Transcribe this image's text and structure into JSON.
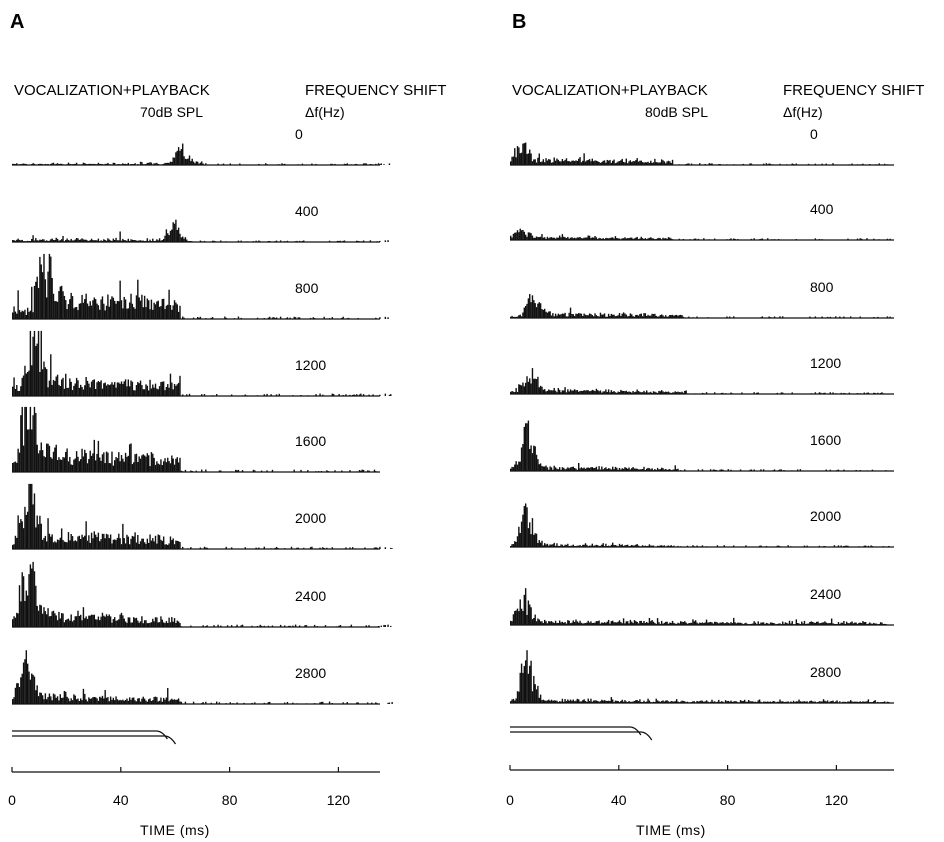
{
  "panels": [
    {
      "letter": "A",
      "header_left": "VOCALIZATION+PLAYBACK",
      "header_level": "70dB SPL",
      "header_right": "FREQUENCY SHIFT",
      "header_right_sub": "Δf(Hz)",
      "xlabel": "TIME (ms)"
    },
    {
      "letter": "B",
      "header_left": "VOCALIZATION+PLAYBACK",
      "header_level": "80dB SPL",
      "header_right": "FREQUENCY SHIFT",
      "header_right_sub": "Δf(Hz)",
      "xlabel": "TIME (ms)"
    }
  ],
  "chart_data": [
    {
      "type": "bar",
      "panel": "A",
      "title": "VOCALIZATION+PLAYBACK 70dB SPL",
      "xlabel": "TIME (ms)",
      "xlim": [
        0,
        140
      ],
      "xticks": [
        "0",
        "40",
        "80",
        "120"
      ],
      "grid": false,
      "series_label_heading": "FREQUENCY SHIFT Δf(Hz)",
      "series": [
        {
          "name": "0",
          "shape": {
            "peak_t": 62,
            "peak_h": 0.25,
            "plateau_h": 0.03,
            "plateau_end": 70,
            "noise": 0.03
          }
        },
        {
          "name": "400",
          "shape": {
            "peak_t": 60,
            "peak_h": 0.18,
            "plateau_h": 0.07,
            "plateau_end": 62,
            "noise": 0.03
          }
        },
        {
          "name": "800",
          "shape": {
            "peak_t": 12,
            "peak_h": 0.55,
            "plateau_h": 0.35,
            "plateau_end": 62,
            "noise": 0.04
          }
        },
        {
          "name": "1200",
          "shape": {
            "peak_t": 8,
            "peak_h": 1.0,
            "plateau_h": 0.25,
            "plateau_end": 62,
            "noise": 0.04
          }
        },
        {
          "name": "1600",
          "shape": {
            "peak_t": 6,
            "peak_h": 0.9,
            "plateau_h": 0.3,
            "plateau_end": 62,
            "noise": 0.04
          }
        },
        {
          "name": "2000",
          "shape": {
            "peak_t": 6,
            "peak_h": 0.85,
            "plateau_h": 0.22,
            "plateau_end": 62,
            "noise": 0.04
          }
        },
        {
          "name": "2400",
          "shape": {
            "peak_t": 6,
            "peak_h": 1.0,
            "plateau_h": 0.18,
            "plateau_end": 62,
            "noise": 0.04
          }
        },
        {
          "name": "2800",
          "shape": {
            "peak_t": 5,
            "peak_h": 0.6,
            "plateau_h": 0.12,
            "plateau_end": 62,
            "noise": 0.04
          }
        }
      ],
      "stimulus_end_ms": [
        56,
        59
      ]
    },
    {
      "type": "bar",
      "panel": "B",
      "title": "VOCALIZATION+PLAYBACK 80dB SPL",
      "xlabel": "TIME (ms)",
      "xlim": [
        0,
        140
      ],
      "xticks": [
        "0",
        "40",
        "80",
        "120"
      ],
      "grid": false,
      "series_label_heading": "FREQUENCY SHIFT Δf(Hz)",
      "series": [
        {
          "name": "0",
          "shape": {
            "peak_t": 4,
            "peak_h": 0.22,
            "plateau_h": 0.08,
            "plateau_end": 60,
            "noise": 0.03
          }
        },
        {
          "name": "400",
          "shape": {
            "peak_t": 4,
            "peak_h": 0.1,
            "plateau_h": 0.04,
            "plateau_end": 60,
            "noise": 0.03
          }
        },
        {
          "name": "800",
          "shape": {
            "peak_t": 9,
            "peak_h": 0.35,
            "plateau_h": 0.06,
            "plateau_end": 64,
            "noise": 0.03
          }
        },
        {
          "name": "1200",
          "shape": {
            "peak_t": 7,
            "peak_h": 0.4,
            "plateau_h": 0.05,
            "plateau_end": 65,
            "noise": 0.03
          }
        },
        {
          "name": "1600",
          "shape": {
            "peak_t": 6,
            "peak_h": 0.65,
            "plateau_h": 0.05,
            "plateau_end": 62,
            "noise": 0.03
          }
        },
        {
          "name": "2000",
          "shape": {
            "peak_t": 6,
            "peak_h": 0.6,
            "plateau_h": 0.03,
            "plateau_end": 60,
            "noise": 0.03
          }
        },
        {
          "name": "2400",
          "shape": {
            "peak_t": 5,
            "peak_h": 0.38,
            "plateau_h": 0.06,
            "plateau_end": 138,
            "noise": 0.03
          }
        },
        {
          "name": "2800",
          "shape": {
            "peak_t": 6,
            "peak_h": 0.7,
            "plateau_h": 0.04,
            "plateau_end": 138,
            "noise": 0.03
          }
        }
      ],
      "stimulus_end_ms": [
        47,
        51
      ]
    }
  ]
}
